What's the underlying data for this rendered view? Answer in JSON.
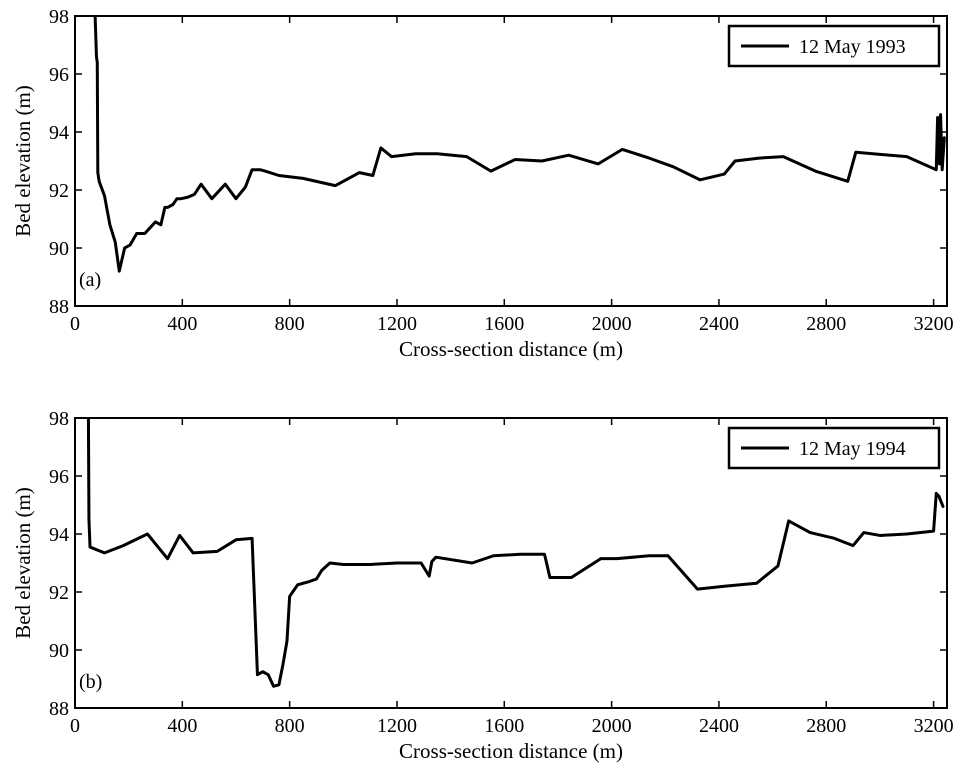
{
  "chart_data": [
    {
      "type": "line",
      "panel_label": "(a)",
      "xlabel": "Cross-section distance (m)",
      "ylabel": "Bed elevation (m)",
      "xlim": [
        0,
        3250
      ],
      "ylim": [
        88,
        98
      ],
      "xticks": [
        0,
        400,
        800,
        1200,
        1600,
        2000,
        2400,
        2800,
        3200
      ],
      "yticks": [
        88,
        90,
        92,
        94,
        96,
        98
      ],
      "legend_position": "top-right",
      "grid": false,
      "series": [
        {
          "name": "12 May 1993",
          "color": "#000000",
          "x": [
            75,
            80,
            83,
            85,
            90,
            110,
            130,
            150,
            165,
            185,
            205,
            230,
            260,
            280,
            300,
            320,
            335,
            345,
            365,
            380,
            395,
            420,
            445,
            470,
            510,
            560,
            600,
            635,
            660,
            690,
            710,
            760,
            850,
            970,
            1060,
            1110,
            1140,
            1180,
            1270,
            1350,
            1460,
            1550,
            1640,
            1740,
            1840,
            1950,
            2040,
            2140,
            2230,
            2330,
            2420,
            2460,
            2550,
            2640,
            2760,
            2880,
            2910,
            3100,
            3210,
            3215,
            3222,
            3226,
            3232,
            3240
          ],
          "y": [
            98,
            96.6,
            96.4,
            92.6,
            92.3,
            91.8,
            90.8,
            90.2,
            89.2,
            90.0,
            90.1,
            90.5,
            90.5,
            90.7,
            90.9,
            90.8,
            91.4,
            91.4,
            91.5,
            91.7,
            91.7,
            91.75,
            91.85,
            92.2,
            91.7,
            92.2,
            91.7,
            92.1,
            92.7,
            92.7,
            92.65,
            92.5,
            92.4,
            92.15,
            92.6,
            92.5,
            93.45,
            93.15,
            93.25,
            93.25,
            93.15,
            92.65,
            93.05,
            93.0,
            93.2,
            92.9,
            93.4,
            93.1,
            92.8,
            92.35,
            92.55,
            93.0,
            93.1,
            93.15,
            92.65,
            92.3,
            93.3,
            93.15,
            92.7,
            94.5,
            92.9,
            94.6,
            92.7,
            93.8
          ]
        }
      ]
    },
    {
      "type": "line",
      "panel_label": "(b)",
      "xlabel": "Cross-section distance (m)",
      "ylabel": "Bed elevation (m)",
      "xlim": [
        0,
        3250
      ],
      "ylim": [
        88,
        98
      ],
      "xticks": [
        0,
        400,
        800,
        1200,
        1600,
        2000,
        2400,
        2800,
        3200
      ],
      "yticks": [
        88,
        90,
        92,
        94,
        96,
        98
      ],
      "legend_position": "top-right",
      "grid": false,
      "series": [
        {
          "name": "12 May 1994",
          "color": "#000000",
          "x": [
            50,
            52,
            56,
            110,
            180,
            270,
            345,
            390,
            440,
            530,
            600,
            660,
            680,
            700,
            720,
            740,
            760,
            775,
            790,
            800,
            830,
            870,
            900,
            920,
            950,
            1000,
            1100,
            1200,
            1290,
            1320,
            1330,
            1345,
            1480,
            1560,
            1660,
            1720,
            1750,
            1770,
            1850,
            1960,
            2020,
            2140,
            2210,
            2320,
            2420,
            2540,
            2620,
            2660,
            2740,
            2830,
            2900,
            2940,
            3000,
            3100,
            3200,
            3210,
            3220,
            3235
          ],
          "y": [
            98,
            94.5,
            93.55,
            93.35,
            93.6,
            94.0,
            93.15,
            93.95,
            93.35,
            93.4,
            93.8,
            93.85,
            89.15,
            89.25,
            89.15,
            88.75,
            88.8,
            89.5,
            90.3,
            91.85,
            92.25,
            92.35,
            92.45,
            92.75,
            93.0,
            92.95,
            92.95,
            93.0,
            93.0,
            92.55,
            93.05,
            93.2,
            93.0,
            93.25,
            93.3,
            93.3,
            93.3,
            92.5,
            92.5,
            93.15,
            93.15,
            93.25,
            93.25,
            92.1,
            92.2,
            92.3,
            92.9,
            94.45,
            94.05,
            93.85,
            93.6,
            94.05,
            93.95,
            94.0,
            94.1,
            95.4,
            95.3,
            94.95
          ]
        }
      ]
    }
  ]
}
